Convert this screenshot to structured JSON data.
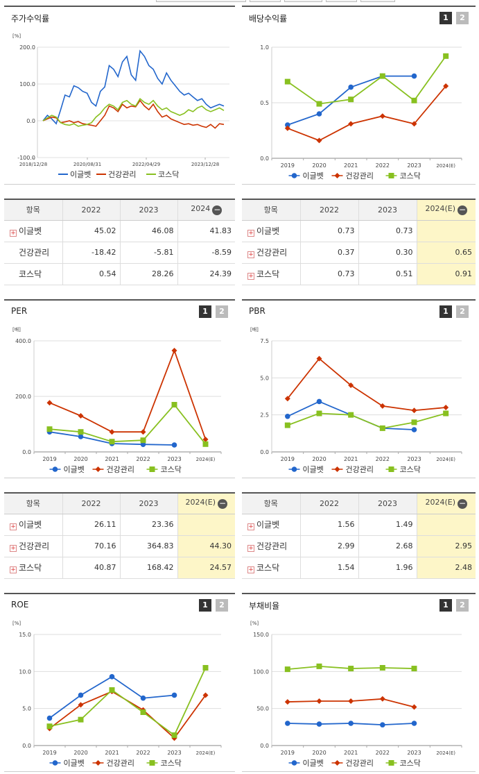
{
  "panels": {
    "stock": {
      "title": "주가수익률",
      "unit": "[%]",
      "yticks": [
        "200.0",
        "100.0",
        "0.0",
        "-100.0"
      ],
      "xticks": [
        "2018/12/28",
        "2020/08/31",
        "2022/04/29",
        "2023/12/28"
      ]
    },
    "div": {
      "title": "배당수익률",
      "btn1": "1",
      "btn2": "2"
    },
    "per": {
      "title": "PER",
      "btn1": "1",
      "btn2": "2"
    },
    "pbr": {
      "title": "PBR",
      "btn1": "1",
      "btn2": "2"
    },
    "roe": {
      "title": "ROE",
      "btn1": "1",
      "btn2": "2"
    },
    "debt": {
      "title": "부채비율",
      "btn1": "1",
      "btn2": "2"
    }
  },
  "legend": {
    "a": "이글벳",
    "b": "건강관리",
    "c": "코스닥"
  },
  "colors": {
    "a": "#2266cc",
    "b": "#cc3300",
    "c": "#88c020"
  },
  "chart_data": [
    {
      "id": "stock",
      "type": "line",
      "title": "주가수익률",
      "ylabel": "[%]",
      "ylim": [
        -100,
        200
      ],
      "x_labels": [
        "2018/12/28",
        "2020/08/31",
        "2022/04/29",
        "2023/12/28"
      ],
      "series": [
        {
          "name": "이글벳",
          "key": "a",
          "values": [
            0,
            15,
            5,
            -8,
            30,
            70,
            65,
            95,
            90,
            80,
            75,
            50,
            40,
            80,
            92,
            150,
            140,
            120,
            160,
            175,
            125,
            110,
            190,
            175,
            150,
            140,
            115,
            100,
            130,
            110,
            95,
            80,
            70,
            75,
            65,
            55,
            60,
            45,
            35,
            40,
            45,
            40
          ]
        },
        {
          "name": "건강관리",
          "key": "b",
          "values": [
            0,
            5,
            10,
            8,
            -5,
            -3,
            0,
            -5,
            -2,
            -8,
            -10,
            -12,
            -15,
            0,
            15,
            40,
            35,
            25,
            45,
            35,
            40,
            38,
            55,
            40,
            30,
            45,
            25,
            10,
            15,
            5,
            0,
            -5,
            -10,
            -8,
            -12,
            -10,
            -15,
            -18,
            -10,
            -20,
            -8,
            -10
          ]
        },
        {
          "name": "코스닥",
          "key": "c",
          "values": [
            0,
            8,
            15,
            10,
            -5,
            -10,
            -12,
            -8,
            -15,
            -12,
            -10,
            -5,
            10,
            20,
            35,
            45,
            40,
            30,
            50,
            55,
            45,
            40,
            60,
            50,
            45,
            55,
            40,
            30,
            35,
            25,
            20,
            15,
            20,
            30,
            25,
            35,
            40,
            30,
            25,
            30,
            35,
            28
          ]
        }
      ]
    },
    {
      "id": "div",
      "type": "line",
      "title": "배당수익률",
      "ylim": [
        0,
        1.0
      ],
      "yticks": [
        "1.0",
        "0.5",
        "0.0"
      ],
      "categories": [
        "2019",
        "2020",
        "2021",
        "2022",
        "2023",
        "2024(E)"
      ],
      "series": [
        {
          "name": "이글벳",
          "key": "a",
          "values": [
            0.3,
            0.4,
            0.64,
            0.74,
            0.74,
            null
          ]
        },
        {
          "name": "건강관리",
          "key": "b",
          "values": [
            0.27,
            0.16,
            0.31,
            0.38,
            0.31,
            0.65
          ]
        },
        {
          "name": "코스닥",
          "key": "c",
          "values": [
            0.69,
            0.49,
            0.53,
            0.74,
            0.52,
            0.92
          ]
        }
      ]
    },
    {
      "id": "per",
      "type": "line",
      "title": "PER",
      "ylabel": "[배]",
      "ylim": [
        0,
        400
      ],
      "yticks": [
        "400.0",
        "200.0",
        "0.0"
      ],
      "categories": [
        "2019",
        "2020",
        "2021",
        "2022",
        "2023",
        "2024(E)"
      ],
      "series": [
        {
          "name": "이글벳",
          "key": "a",
          "values": [
            72,
            55,
            30,
            27,
            25,
            null
          ]
        },
        {
          "name": "건강관리",
          "key": "b",
          "values": [
            177,
            130,
            72,
            72,
            365,
            45
          ]
        },
        {
          "name": "코스닥",
          "key": "c",
          "values": [
            82,
            72,
            37,
            42,
            170,
            28
          ]
        }
      ]
    },
    {
      "id": "pbr",
      "type": "line",
      "title": "PBR",
      "ylabel": "[배]",
      "ylim": [
        0,
        7.5
      ],
      "yticks": [
        "7.5",
        "5.0",
        "2.5",
        "0.0"
      ],
      "categories": [
        "2019",
        "2020",
        "2021",
        "2022",
        "2023",
        "2024(E)"
      ],
      "series": [
        {
          "name": "이글벳",
          "key": "a",
          "values": [
            2.4,
            3.4,
            2.5,
            1.6,
            1.5,
            null
          ]
        },
        {
          "name": "건강관리",
          "key": "b",
          "values": [
            3.6,
            6.3,
            4.5,
            3.1,
            2.8,
            3.0
          ]
        },
        {
          "name": "코스닥",
          "key": "c",
          "values": [
            1.8,
            2.6,
            2.5,
            1.6,
            2.0,
            2.6
          ]
        }
      ]
    },
    {
      "id": "roe",
      "type": "line",
      "title": "ROE",
      "ylabel": "[%]",
      "ylim": [
        0,
        15
      ],
      "yticks": [
        "15.0",
        "10.0",
        "5.0",
        "0.0"
      ],
      "categories": [
        "2019",
        "2020",
        "2021",
        "2022",
        "2023",
        "2024(E)"
      ],
      "series": [
        {
          "name": "이글벳",
          "key": "a",
          "values": [
            3.7,
            6.8,
            9.3,
            6.4,
            6.8,
            null
          ]
        },
        {
          "name": "건강관리",
          "key": "b",
          "values": [
            2.3,
            5.5,
            7.3,
            4.8,
            1.0,
            6.8
          ]
        },
        {
          "name": "코스닥",
          "key": "c",
          "values": [
            2.6,
            3.5,
            7.5,
            4.5,
            1.4,
            10.5
          ]
        }
      ]
    },
    {
      "id": "debt",
      "type": "line",
      "title": "부채비율",
      "ylabel": "[%]",
      "ylim": [
        0,
        150
      ],
      "yticks": [
        "150.0",
        "100.0",
        "50.0",
        "0.0"
      ],
      "categories": [
        "2019",
        "2020",
        "2021",
        "2022",
        "2023",
        "2024(E)"
      ],
      "series": [
        {
          "name": "이글벳",
          "key": "a",
          "values": [
            30,
            29,
            30,
            28,
            30,
            null
          ]
        },
        {
          "name": "건강관리",
          "key": "b",
          "values": [
            59,
            60,
            60,
            63,
            52,
            null
          ]
        },
        {
          "name": "코스닥",
          "key": "c",
          "values": [
            103,
            107,
            104,
            105,
            104,
            null
          ]
        }
      ]
    }
  ],
  "tables": {
    "stock": {
      "headers": [
        "항목",
        "2022",
        "2023",
        "2024"
      ],
      "rows": [
        {
          "name": "이글벳",
          "v": [
            "45.02",
            "46.08",
            "41.83"
          ]
        },
        {
          "name": "건강관리",
          "v": [
            "-18.42",
            "-5.81",
            "-8.59"
          ]
        },
        {
          "name": "코스닥",
          "v": [
            "0.54",
            "28.26",
            "24.39"
          ]
        }
      ]
    },
    "div": {
      "headers": [
        "항목",
        "2022",
        "2023",
        "2024(E)"
      ],
      "rows": [
        {
          "name": "이글벳",
          "v": [
            "0.73",
            "0.73",
            ""
          ]
        },
        {
          "name": "건강관리",
          "v": [
            "0.37",
            "0.30",
            "0.65"
          ]
        },
        {
          "name": "코스닥",
          "v": [
            "0.73",
            "0.51",
            "0.91"
          ]
        }
      ]
    },
    "per": {
      "headers": [
        "항목",
        "2022",
        "2023",
        "2024(E)"
      ],
      "rows": [
        {
          "name": "이글벳",
          "v": [
            "26.11",
            "23.36",
            ""
          ]
        },
        {
          "name": "건강관리",
          "v": [
            "70.16",
            "364.83",
            "44.30"
          ]
        },
        {
          "name": "코스닥",
          "v": [
            "40.87",
            "168.42",
            "24.57"
          ]
        }
      ]
    },
    "pbr": {
      "headers": [
        "항목",
        "2022",
        "2023",
        "2024(E)"
      ],
      "rows": [
        {
          "name": "이글벳",
          "v": [
            "1.56",
            "1.49",
            ""
          ]
        },
        {
          "name": "건강관리",
          "v": [
            "2.99",
            "2.68",
            "2.95"
          ]
        },
        {
          "name": "코스닥",
          "v": [
            "1.54",
            "1.96",
            "2.48"
          ]
        }
      ]
    }
  }
}
